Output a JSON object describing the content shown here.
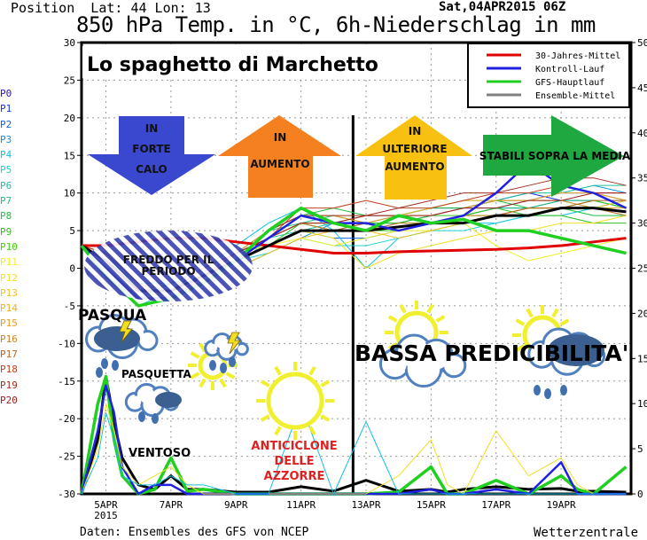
{
  "header": {
    "position": "Position  Lat: 44 Lon: 13",
    "run": "Sat,04APR2015 06Z",
    "title": "850 hPa Temp. in °C, 6h-Niederschlag in mm"
  },
  "footer": {
    "source": "Daten: Ensembles des GFS von NCEP",
    "brand": "Wetterzentrale"
  },
  "chart_data": {
    "type": "line",
    "title": "850 hPa Temp. in °C, 6h-Niederschlag in mm",
    "overlay_title": "Lo spaghetto di Marchetto",
    "x_unit": "day of April 2015",
    "xlim": [
      4.25,
      21.15
    ],
    "ylim_left": [
      -30,
      30
    ],
    "ylim_right": [
      0,
      50
    ],
    "left_ticks": [
      30,
      25,
      20,
      15,
      10,
      5,
      0,
      -5,
      -10,
      -15,
      -20,
      -25,
      -30
    ],
    "right_ticks": [
      50,
      45,
      40,
      35,
      30,
      25,
      20,
      15,
      10,
      5,
      0
    ],
    "x_ticks": [
      {
        "day": 5,
        "label": "5APR",
        "sub": "2015"
      },
      {
        "day": 7,
        "label": "7APR"
      },
      {
        "day": 9,
        "label": "9APR"
      },
      {
        "day": 11,
        "label": "11APR"
      },
      {
        "day": 13,
        "label": "13APR"
      },
      {
        "day": 15,
        "label": "15APR"
      },
      {
        "day": 17,
        "label": "17APR"
      },
      {
        "day": 19,
        "label": "19APR"
      }
    ],
    "grid": true,
    "legend_position": "top-right",
    "legend": [
      {
        "name": "30-Jahres-Mittel",
        "color": "#e00000"
      },
      {
        "name": "Kontroll-Lauf",
        "color": "#2020e0"
      },
      {
        "name": "GFS-Hauptlauf",
        "color": "#20d020"
      },
      {
        "name": "Ensemble-Mittel",
        "color": "#808080"
      }
    ],
    "x": [
      4.25,
      5,
      6,
      7,
      8,
      9,
      10,
      11,
      12,
      13,
      14,
      15,
      16,
      17,
      18,
      19,
      20,
      21
    ],
    "series": [
      {
        "name": "30-Jahres-Mittel",
        "color": "#e00000",
        "width": 3,
        "values": [
          3,
          3,
          3.5,
          4,
          4,
          3.5,
          3,
          2.5,
          2,
          2,
          2.2,
          2.3,
          2.4,
          2.5,
          2.7,
          3,
          3.5,
          4
        ]
      },
      {
        "name": "Ensemble-Mittel",
        "color": "#000000",
        "width": 3,
        "values": [
          3,
          1,
          -3,
          -3,
          -1,
          1,
          3,
          5,
          5,
          5,
          5.5,
          6,
          6,
          7,
          7,
          8,
          8,
          7.5
        ]
      },
      {
        "name": "Kontroll-Lauf",
        "color": "#2020e0",
        "width": 2.5,
        "values": [
          3,
          0,
          -4,
          -4,
          -2,
          1,
          4,
          7,
          6,
          6,
          5,
          6,
          7,
          10,
          14,
          11,
          10,
          8
        ]
      },
      {
        "name": "GFS-Hauptlauf",
        "color": "#20d020",
        "width": 3.5,
        "values": [
          3,
          -1,
          -5,
          -4,
          -2,
          1,
          5,
          8,
          6,
          5,
          7,
          6,
          6.5,
          5,
          5,
          4,
          3,
          2
        ]
      }
    ],
    "members": {
      "labels": [
        "P0",
        "P1",
        "P2",
        "P3",
        "P4",
        "P5",
        "P6",
        "P7",
        "P8",
        "P9",
        "P10",
        "P11",
        "P12",
        "P13",
        "P14",
        "P15",
        "P16",
        "P17",
        "P18",
        "P19",
        "P20"
      ],
      "colors": [
        "#2a10c8",
        "#1530e0",
        "#1060e0",
        "#1090e0",
        "#10c0e0",
        "#20d0d0",
        "#20c0a0",
        "#20c080",
        "#20c040",
        "#30c020",
        "#40d010",
        "#f0f020",
        "#f0e020",
        "#f0c020",
        "#f0b020",
        "#e0a020",
        "#d08020",
        "#c06020",
        "#c04020",
        "#a03020",
        "#a02020"
      ],
      "values": [
        [
          3,
          1,
          -3,
          -3,
          -1,
          2,
          4,
          6,
          5,
          5,
          6,
          7,
          8,
          9,
          9,
          10,
          10,
          9
        ],
        [
          3,
          2,
          -2,
          -3,
          0,
          2,
          5,
          7,
          6,
          7,
          7,
          8,
          8,
          9,
          10,
          9,
          9,
          8
        ],
        [
          3,
          0,
          -4,
          -2,
          -1,
          1,
          3,
          5,
          4,
          4,
          5,
          6,
          7,
          8,
          8,
          9,
          8,
          7
        ],
        [
          3,
          1,
          -3,
          -4,
          -2,
          0,
          2,
          4,
          6,
          6,
          6,
          7,
          8,
          8,
          9,
          10,
          11,
          10
        ],
        [
          3,
          2,
          -2,
          -2,
          0,
          3,
          6,
          8,
          5,
          0,
          4,
          5,
          6,
          6,
          7,
          7,
          8,
          9
        ],
        [
          3,
          0,
          -5,
          -3,
          -1,
          1,
          2,
          4,
          3,
          3,
          4,
          5,
          5,
          6,
          7,
          8,
          9,
          9
        ],
        [
          3,
          1,
          -3,
          -3,
          -2,
          0,
          4,
          5,
          6,
          6,
          7,
          8,
          9,
          9,
          10,
          10,
          11,
          11
        ],
        [
          3,
          1,
          -2,
          -4,
          -1,
          2,
          5,
          6,
          7,
          6,
          6,
          6,
          7,
          8,
          8,
          9,
          9,
          8
        ],
        [
          3,
          2,
          -3,
          -3,
          0,
          2,
          4,
          7,
          8,
          7,
          7,
          8,
          8,
          9,
          8,
          8,
          7,
          7
        ],
        [
          3,
          0,
          -4,
          -4,
          -2,
          1,
          3,
          6,
          5,
          6,
          6,
          7,
          7,
          8,
          7,
          7,
          6,
          6
        ],
        [
          3,
          1,
          -3,
          -2,
          -1,
          2,
          4,
          6,
          6,
          5,
          5,
          6,
          7,
          7,
          8,
          8,
          9,
          8
        ],
        [
          3,
          2,
          -2,
          -3,
          0,
          2,
          3,
          4,
          3,
          4,
          5,
          5,
          6,
          3,
          1,
          2,
          3,
          4
        ],
        [
          3,
          1,
          -3,
          -3,
          -1,
          1,
          3,
          5,
          4,
          0,
          2,
          3,
          4,
          5,
          5,
          6,
          6,
          7
        ],
        [
          3,
          0,
          -4,
          -3,
          -2,
          0,
          2,
          4,
          5,
          5,
          4,
          5,
          6,
          7,
          7,
          8,
          8,
          9
        ],
        [
          3,
          1,
          -3,
          -4,
          -1,
          2,
          4,
          6,
          6,
          7,
          7,
          8,
          9,
          9,
          9,
          10,
          10,
          9
        ],
        [
          3,
          2,
          -2,
          -3,
          0,
          2,
          5,
          7,
          7,
          6,
          7,
          7,
          8,
          9,
          9,
          9,
          8,
          8
        ],
        [
          3,
          1,
          -3,
          -3,
          -1,
          1,
          4,
          6,
          5,
          5,
          6,
          6,
          7,
          7,
          8,
          8,
          8,
          7
        ],
        [
          3,
          0,
          -4,
          -4,
          -2,
          1,
          3,
          5,
          5,
          6,
          5,
          6,
          6,
          7,
          8,
          8,
          9,
          9
        ],
        [
          3,
          1,
          -3,
          -3,
          -1,
          2,
          4,
          8,
          8,
          9,
          8,
          8,
          9,
          10,
          10,
          11,
          10,
          10
        ],
        [
          3,
          2,
          -2,
          -4,
          -1,
          1,
          5,
          7,
          7,
          7,
          8,
          9,
          10,
          10,
          11,
          12,
          12,
          11
        ],
        [
          3,
          1,
          -3,
          -3,
          0,
          2,
          4,
          6,
          6,
          7,
          7,
          7,
          8,
          8,
          9,
          9,
          10,
          10
        ]
      ]
    },
    "precip": {
      "axis": "right",
      "x": [
        4.25,
        4.75,
        5,
        5.25,
        5.5,
        6,
        6.5,
        7,
        7.5,
        8,
        9,
        10,
        11,
        12,
        13,
        14,
        15,
        15.5,
        16,
        17,
        18,
        19,
        19.5,
        20,
        21
      ],
      "series": [
        {
          "name": "Ensemble-Mittel",
          "color": "#000000",
          "width": 3,
          "values": [
            0,
            6,
            13,
            8,
            4,
            1,
            0.5,
            2,
            0.5,
            0.5,
            0.2,
            0.2,
            0.8,
            0.3,
            1.5,
            0.3,
            0.5,
            0.2,
            0.5,
            0.8,
            0.5,
            0.6,
            0.3,
            0.3,
            0.2
          ]
        },
        {
          "name": "GFS-Hauptlauf",
          "color": "#20d020",
          "width": 3.5,
          "values": [
            0,
            10,
            13,
            6,
            2,
            0,
            0.5,
            4,
            0.3,
            0.5,
            0,
            0,
            0,
            0,
            0,
            0.2,
            3,
            0,
            0,
            1.5,
            0,
            2,
            0.5,
            0,
            3
          ]
        },
        {
          "name": "Kontroll-Lauf",
          "color": "#2020e0",
          "width": 2.5,
          "values": [
            0,
            7,
            12,
            9,
            3,
            0,
            1,
            1,
            0,
            0,
            0,
            0,
            0,
            0,
            0,
            0,
            0.5,
            0,
            0,
            0.5,
            0,
            3.5,
            0,
            0,
            0
          ]
        },
        {
          "name": "P12",
          "color": "#f0e020",
          "width": 1,
          "values": [
            0,
            5,
            10,
            7,
            3,
            1,
            2,
            3,
            1,
            0,
            0,
            0,
            0,
            0,
            0,
            2,
            6,
            1,
            0,
            7,
            2,
            4,
            1,
            0,
            0
          ]
        },
        {
          "name": "P4",
          "color": "#10c0e0",
          "width": 1,
          "values": [
            0,
            4,
            9,
            6,
            2,
            1,
            1,
            2,
            1,
            1,
            0,
            0,
            10,
            0,
            8,
            0,
            0,
            0,
            0,
            0,
            0,
            0,
            0,
            0,
            0
          ]
        }
      ]
    },
    "divider_day": 12.6,
    "annotations": [
      {
        "text": "IN FORTE CALO",
        "lines": [
          "IN",
          "FORTE",
          "CALO"
        ],
        "shape": "arrow-down",
        "color": "#3a48d0"
      },
      {
        "text": "IN AUMENTO",
        "lines": [
          "IN",
          "AUMENTO"
        ],
        "shape": "arrow-up",
        "color": "#f58020"
      },
      {
        "text": "IN ULTERIORE AUMENTO",
        "lines": [
          "IN",
          "ULTERIORE",
          "AUMENTO"
        ],
        "shape": "arrow-up",
        "color": "#f8c010"
      },
      {
        "text": "STABILI SOPRA LA MEDIA",
        "shape": "arrow-right",
        "color": "#20a840"
      },
      {
        "text": "FREDDO PER IL PERIODO",
        "lines": [
          "FREDDO PER IL",
          "PERIODO"
        ]
      },
      {
        "text": "PASQUA"
      },
      {
        "text": "PASQUETTA"
      },
      {
        "text": "VENTOSO"
      },
      {
        "text": "ANTICICLONE DELLE AZZORRE",
        "lines": [
          "ANTICICLONE",
          "DELLE",
          "AZZORRE"
        ],
        "color": "#e02020"
      },
      {
        "text": "BASSA PREDICIBILITA'"
      }
    ]
  }
}
